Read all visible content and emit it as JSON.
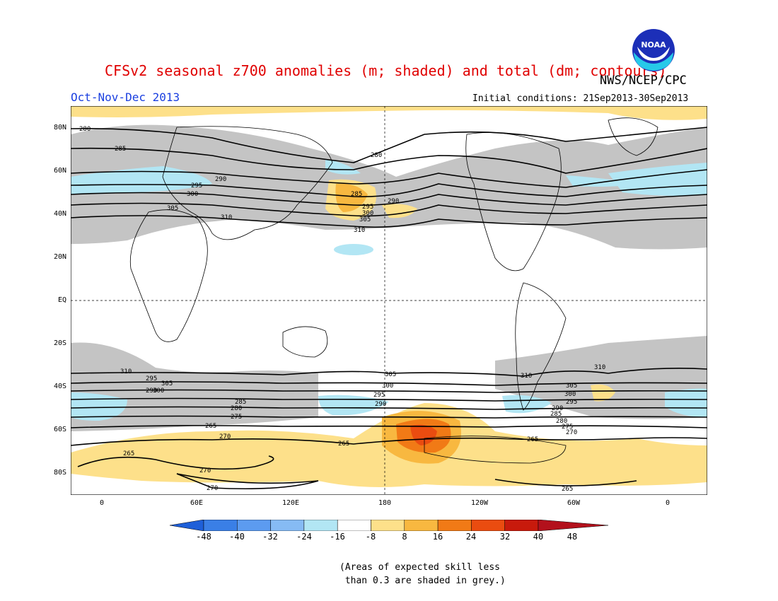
{
  "header": {
    "title": "CFSv2 seasonal z700 anomalies (m; shaded) and total (dm; contours)",
    "agency": "NWS/NCEP/CPC",
    "season": "Oct-Nov-Dec 2013",
    "initial_conditions": "Initial conditions: 21Sep2013-30Sep2013",
    "logo_text": "NOAA"
  },
  "map": {
    "lat_labels": [
      "80N",
      "60N",
      "40N",
      "20N",
      "EQ",
      "20S",
      "40S",
      "60S",
      "80S"
    ],
    "lon_labels": [
      "0",
      "60E",
      "120E",
      "180",
      "120W",
      "60W",
      "0"
    ],
    "contour_labels": [
      "280",
      "285",
      "290",
      "295",
      "300",
      "305",
      "310",
      "265",
      "270",
      "275",
      "280",
      "285",
      "290",
      "295",
      "300",
      "305",
      "310",
      "265",
      "270",
      "265",
      "270",
      "265",
      "280",
      "285",
      "290",
      "295",
      "300",
      "305",
      "310",
      "305",
      "300",
      "295",
      "290",
      "310",
      "305",
      "300",
      "295",
      "290",
      "285",
      "280",
      "275",
      "270",
      "265",
      "310"
    ]
  },
  "colorbar": {
    "labels": [
      "-48",
      "-40",
      "-32",
      "-24",
      "-16",
      "-8",
      "8",
      "16",
      "24",
      "32",
      "40",
      "48"
    ],
    "colors": [
      "#1e5fd8",
      "#3a7fe6",
      "#5c9bf0",
      "#86bbf4",
      "#b2e6f4",
      "#ffffff",
      "#fde08a",
      "#f8b840",
      "#f17a16",
      "#ea4c10",
      "#c81a0c",
      "#b3111c"
    ]
  },
  "note": "(Areas of expected skill less\n than 0.3 are shaded in grey.)"
}
